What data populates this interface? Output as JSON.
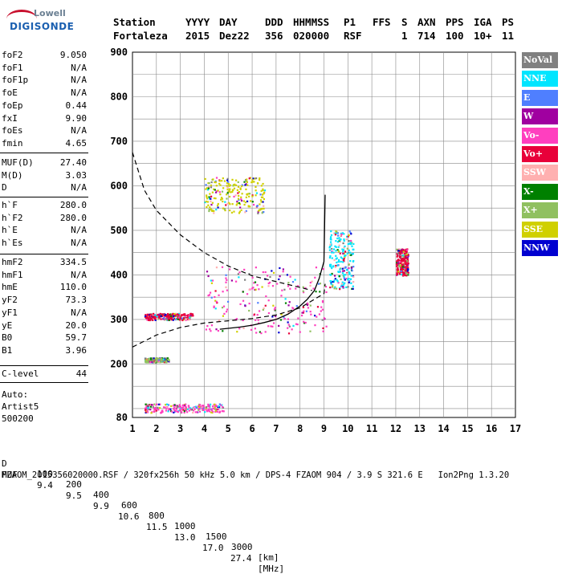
{
  "logo": {
    "line1": "Lowell",
    "line2": "DIGISONDE"
  },
  "header": {
    "labels": [
      "Station",
      "YYYY",
      "DAY",
      "DDD",
      "HHMMSS",
      "P1",
      "FFS",
      "S",
      "AXN",
      "PPS",
      "IGA",
      "PS"
    ],
    "values": [
      "Fortaleza",
      "2015",
      "Dez22",
      "356",
      "020000",
      "RSF",
      "1",
      "714",
      "100",
      "10+",
      "11"
    ]
  },
  "params_group1": [
    {
      "name": "foF2",
      "value": "9.050"
    },
    {
      "name": "foF1",
      "value": "N/A"
    },
    {
      "name": "foF1p",
      "value": "N/A"
    },
    {
      "name": "foE",
      "value": "N/A"
    },
    {
      "name": "foEp",
      "value": "0.44"
    },
    {
      "name": "fxI",
      "value": "9.90"
    },
    {
      "name": "foEs",
      "value": "N/A"
    },
    {
      "name": "fmin",
      "value": "4.65"
    }
  ],
  "params_group2": [
    {
      "name": "MUF(D)",
      "value": "27.40"
    },
    {
      "name": "M(D)",
      "value": "3.03"
    },
    {
      "name": "D",
      "value": "N/A"
    }
  ],
  "params_group3": [
    {
      "name": "h`F",
      "value": "280.0"
    },
    {
      "name": "h`F2",
      "value": "280.0"
    },
    {
      "name": "h`E",
      "value": "N/A"
    },
    {
      "name": "h`Es",
      "value": "N/A"
    }
  ],
  "params_group4": [
    {
      "name": "hmF2",
      "value": "334.5"
    },
    {
      "name": "hmF1",
      "value": "N/A"
    },
    {
      "name": "hmE",
      "value": "110.0"
    },
    {
      "name": "yF2",
      "value": "73.3"
    },
    {
      "name": "yF1",
      "value": "N/A"
    },
    {
      "name": "yE",
      "value": "20.0"
    },
    {
      "name": "B0",
      "value": "59.7"
    },
    {
      "name": "B1",
      "value": "3.96"
    }
  ],
  "params_group5": [
    {
      "name": "C-level",
      "value": "44"
    }
  ],
  "auto": {
    "line1": "Auto:",
    "line2": "Artist5",
    "line3": "500200"
  },
  "legend": [
    {
      "label": "NoVal",
      "color": "#808080"
    },
    {
      "label": "NNE",
      "color": "#00e5ff"
    },
    {
      "label": "E",
      "color": "#4f7fff"
    },
    {
      "label": "W",
      "color": "#a000a0"
    },
    {
      "label": "Vo-",
      "color": "#ff3fbf"
    },
    {
      "label": "Vo+",
      "color": "#e8003a"
    },
    {
      "label": "SSW",
      "color": "#ffb0b0"
    },
    {
      "label": "X-",
      "color": "#008000"
    },
    {
      "label": "X+",
      "color": "#90c060"
    },
    {
      "label": "SSE",
      "color": "#d0d000"
    },
    {
      "label": "NNW",
      "color": "#0000d0"
    }
  ],
  "footer": {
    "d_label": "D",
    "d_values": [
      "100",
      "200",
      "400",
      "600",
      "800",
      "1000",
      "1500",
      "3000",
      "[km]"
    ],
    "muf_label": "MUF",
    "muf_values": [
      "9.4",
      "9.5",
      "9.9",
      "10.6",
      "11.5",
      "13.0",
      "17.0",
      "27.4",
      "[MHz]"
    ],
    "file_line": "FZAOM_2015356020000.RSF / 320fx256h 50 kHz 5.0 km / DPS-4 FZAOM 904 / 3.9 S 321.6 E   Ion2Png 1.3.20"
  },
  "chart_data": {
    "type": "scatter",
    "xlim": [
      1,
      17
    ],
    "ylim": [
      80,
      900
    ],
    "x_ticks": [
      "1",
      "2",
      "3",
      "4",
      "5",
      "6",
      "7",
      "8",
      "9",
      "10",
      "11",
      "12",
      "13",
      "14",
      "15",
      "16",
      "17"
    ],
    "y_ticks": [
      "80",
      "200",
      "300",
      "400",
      "500",
      "600",
      "700",
      "800",
      "900"
    ],
    "grid": true,
    "trace_curve": {
      "x": [
        4.65,
        5,
        5.5,
        6,
        6.5,
        7,
        7.5,
        8,
        8.3,
        8.6,
        8.8,
        9.0,
        9.05
      ],
      "y": [
        278,
        280,
        283,
        287,
        293,
        300,
        312,
        330,
        345,
        365,
        392,
        430,
        580
      ]
    },
    "muf_curve": {
      "x": [
        1,
        2,
        3,
        4,
        5,
        6,
        7,
        8,
        9,
        9.05
      ],
      "y": [
        238,
        265,
        282,
        292,
        297,
        302,
        310,
        326,
        358,
        380
      ]
    },
    "dashed_curve": {
      "x": [
        1,
        1.5,
        2,
        3,
        4,
        5,
        6,
        7,
        8,
        8.5
      ],
      "y": [
        675,
        590,
        545,
        490,
        450,
        420,
        398,
        385,
        372,
        365
      ]
    },
    "echoes": [
      {
        "x": [
          1.5,
          2.5
        ],
        "y": [
          205,
          215
        ],
        "series": "X+"
      },
      {
        "x": [
          1.5,
          4.8
        ],
        "y": [
          92,
          112
        ],
        "series": "Vo-"
      },
      {
        "x": [
          1.5,
          3.5
        ],
        "y": [
          300,
          315
        ],
        "series": "Vo+"
      },
      {
        "x": [
          4,
          9.1
        ],
        "y": [
          270,
          420
        ],
        "series": "Vo-"
      },
      {
        "x": [
          4,
          6.5
        ],
        "y": [
          540,
          620
        ],
        "series": "SSE"
      },
      {
        "x": [
          9.2,
          10.2
        ],
        "y": [
          370,
          500
        ],
        "series": "NNE"
      },
      {
        "x": [
          12,
          12.5
        ],
        "y": [
          400,
          460
        ],
        "series": "Vo+"
      }
    ]
  }
}
